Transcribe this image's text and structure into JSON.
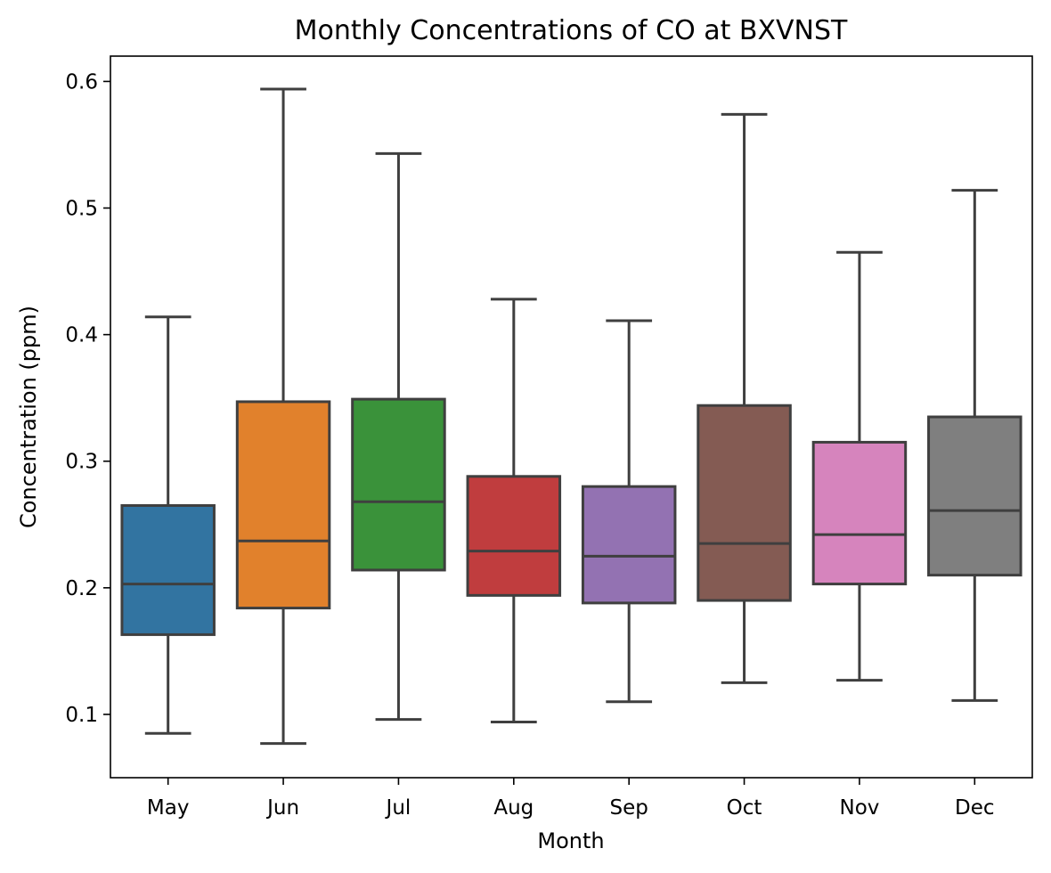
{
  "chart_data": {
    "type": "box",
    "title": "Monthly Concentrations of CO at BXVNST",
    "xlabel": "Month",
    "ylabel": "Concentration (ppm)",
    "ylim": [
      0.05,
      0.62
    ],
    "yticks": [
      0.1,
      0.2,
      0.3,
      0.4,
      0.5,
      0.6
    ],
    "ytick_labels": [
      "0.1",
      "0.2",
      "0.3",
      "0.4",
      "0.5",
      "0.6"
    ],
    "grid": false,
    "categories": [
      "May",
      "Jun",
      "Jul",
      "Aug",
      "Sep",
      "Oct",
      "Nov",
      "Dec"
    ],
    "boxes": [
      {
        "category": "May",
        "whisker_low": 0.085,
        "q1": 0.163,
        "median": 0.203,
        "q3": 0.265,
        "whisker_high": 0.414,
        "color": "#3274a1"
      },
      {
        "category": "Jun",
        "whisker_low": 0.077,
        "q1": 0.184,
        "median": 0.237,
        "q3": 0.347,
        "whisker_high": 0.594,
        "color": "#e1812c"
      },
      {
        "category": "Jul",
        "whisker_low": 0.096,
        "q1": 0.214,
        "median": 0.268,
        "q3": 0.349,
        "whisker_high": 0.543,
        "color": "#3a923a"
      },
      {
        "category": "Aug",
        "whisker_low": 0.094,
        "q1": 0.194,
        "median": 0.229,
        "q3": 0.288,
        "whisker_high": 0.428,
        "color": "#c03d3e"
      },
      {
        "category": "Sep",
        "whisker_low": 0.11,
        "q1": 0.188,
        "median": 0.225,
        "q3": 0.28,
        "whisker_high": 0.411,
        "color": "#9372b2"
      },
      {
        "category": "Oct",
        "whisker_low": 0.125,
        "q1": 0.19,
        "median": 0.235,
        "q3": 0.344,
        "whisker_high": 0.574,
        "color": "#845b53"
      },
      {
        "category": "Nov",
        "whisker_low": 0.127,
        "q1": 0.203,
        "median": 0.242,
        "q3": 0.315,
        "whisker_high": 0.465,
        "color": "#d684bd"
      },
      {
        "category": "Dec",
        "whisker_low": 0.111,
        "q1": 0.21,
        "median": 0.261,
        "q3": 0.335,
        "whisker_high": 0.514,
        "color": "#7f7f7f"
      }
    ]
  }
}
